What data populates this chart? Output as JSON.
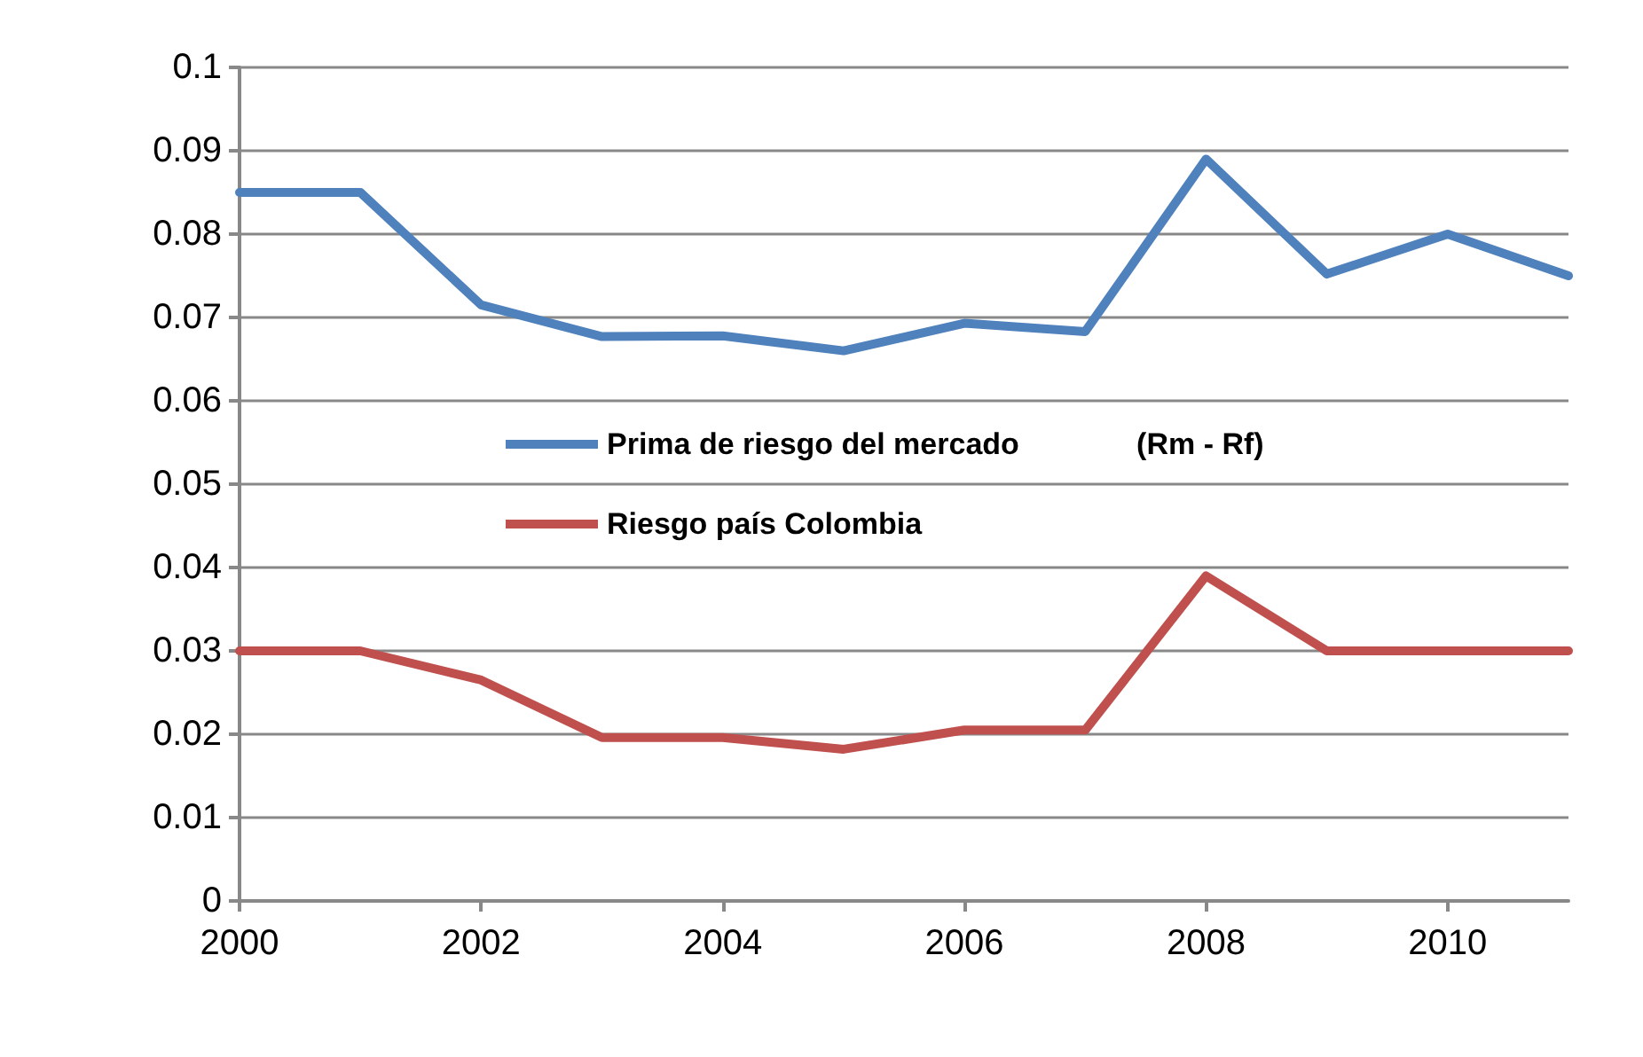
{
  "chart_data": {
    "type": "line",
    "x": [
      2000,
      2001,
      2002,
      2003,
      2004,
      2005,
      2006,
      2007,
      2008,
      2009,
      2010,
      2011
    ],
    "series": [
      {
        "name": "Prima de riesgo del mercado              (Rm - Rf)",
        "color": "#4f81bd",
        "values": [
          0.085,
          0.085,
          0.0715,
          0.0677,
          0.0678,
          0.066,
          0.0693,
          0.0683,
          0.089,
          0.0752,
          0.08,
          0.075
        ]
      },
      {
        "name": "Riesgo país Colombia",
        "color": "#c0504d",
        "values": [
          0.03,
          0.03,
          0.0265,
          0.0196,
          0.0196,
          0.0182,
          0.0205,
          0.0205,
          0.039,
          0.03,
          0.03,
          0.03
        ]
      }
    ],
    "xlim": [
      2000,
      2011
    ],
    "xticks": [
      2000,
      2002,
      2004,
      2006,
      2008,
      2010
    ],
    "ylim": [
      0,
      0.1
    ],
    "yticks": [
      0,
      0.01,
      0.02,
      0.03,
      0.04,
      0.05,
      0.06,
      0.07,
      0.08,
      0.09,
      0.1
    ],
    "grid": "y",
    "legend": "center left",
    "marker": "none",
    "line_style": "solid"
  }
}
